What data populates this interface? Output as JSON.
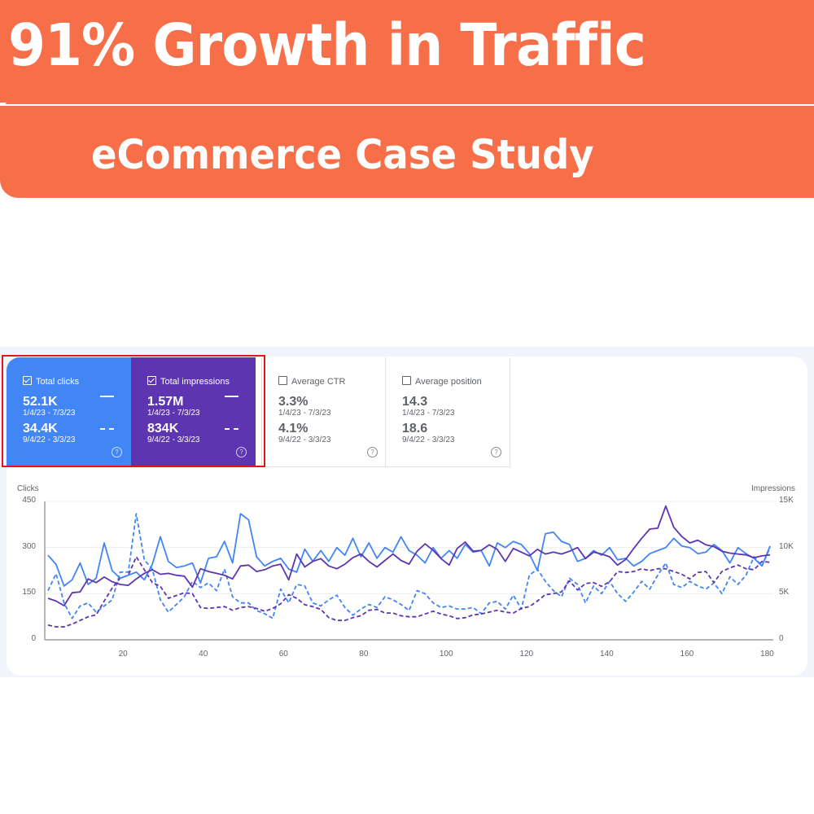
{
  "banner": {
    "headline": "91% Growth in Traffic",
    "subheadline": "eCommerce Case Study",
    "color": "#f76f48"
  },
  "metrics": [
    {
      "label": "Total clicks",
      "checked": true,
      "current_value": "52.1K",
      "current_range": "1/4/23 - 7/3/23",
      "previous_value": "34.4K",
      "previous_range": "9/4/22 - 3/3/23",
      "color": "#4285f4"
    },
    {
      "label": "Total impressions",
      "checked": true,
      "current_value": "1.57M",
      "current_range": "1/4/23 - 7/3/23",
      "previous_value": "834K",
      "previous_range": "9/4/22 - 3/3/23",
      "color": "#5e35b1"
    },
    {
      "label": "Average CTR",
      "checked": false,
      "current_value": "3.3%",
      "current_range": "1/4/23 - 7/3/23",
      "previous_value": "4.1%",
      "previous_range": "9/4/22 - 3/3/23",
      "color": "#ffffff"
    },
    {
      "label": "Average position",
      "checked": false,
      "current_value": "14.3",
      "current_range": "1/4/23 - 7/3/23",
      "previous_value": "18.6",
      "previous_range": "9/4/22 - 3/3/23",
      "color": "#ffffff"
    }
  ],
  "help_glyph": "?",
  "chart_data": {
    "type": "line",
    "title": "",
    "xlabel": "",
    "ylabel": "Clicks",
    "y2label": "Impressions",
    "x_ticks": [
      20,
      40,
      60,
      80,
      100,
      120,
      140,
      160,
      180
    ],
    "y_ticks": [
      "0",
      "150",
      "300",
      "450"
    ],
    "y2_ticks": [
      "0",
      "5K",
      "10K",
      "15K"
    ],
    "ylim": [
      0,
      450
    ],
    "y2lim": [
      0,
      15000
    ],
    "xlim": [
      1,
      181
    ],
    "grid": true,
    "legend": "metric cards (solid = 1/4/23 - 7/3/23, dashed = 9/4/22 - 3/3/23)",
    "series": [
      {
        "name": "Total clicks (1/4/23 - 7/3/23)",
        "axis": "left",
        "style": "solid",
        "color": "#4285f4",
        "x": [
          1,
          3,
          5,
          7,
          9,
          11,
          13,
          15,
          17,
          19,
          21,
          23,
          25,
          27,
          29,
          31,
          33,
          35,
          37,
          39,
          41,
          43,
          45,
          47,
          49,
          51,
          53,
          55,
          57,
          59,
          61,
          63,
          65,
          67,
          69,
          71,
          73,
          75,
          77,
          79,
          81,
          83,
          85,
          87,
          89,
          91,
          93,
          95,
          97,
          99,
          101,
          103,
          105,
          107,
          109,
          111,
          113,
          115,
          117,
          119,
          121,
          123,
          125,
          127,
          129,
          131,
          133,
          135,
          137,
          139,
          141,
          143,
          145,
          147,
          149,
          151,
          153,
          155,
          157,
          159,
          161,
          163,
          165,
          167,
          169,
          171,
          173,
          175,
          177,
          179,
          181
        ],
        "values": [
          275,
          245,
          175,
          195,
          250,
          180,
          200,
          315,
          225,
          200,
          210,
          220,
          195,
          245,
          335,
          255,
          235,
          240,
          250,
          185,
          265,
          270,
          320,
          250,
          410,
          390,
          270,
          240,
          255,
          265,
          230,
          220,
          295,
          255,
          290,
          255,
          300,
          275,
          330,
          270,
          315,
          265,
          300,
          285,
          335,
          290,
          275,
          250,
          300,
          265,
          290,
          265,
          310,
          285,
          290,
          240,
          315,
          300,
          320,
          310,
          280,
          225,
          345,
          350,
          320,
          310,
          255,
          265,
          290,
          275,
          300,
          260,
          265,
          240,
          255,
          280,
          290,
          300,
          330,
          305,
          300,
          280,
          285,
          310,
          290,
          250,
          300,
          280,
          265,
          240,
          305
        ]
      },
      {
        "name": "Total impressions (1/4/23 - 7/3/23)",
        "axis": "right",
        "style": "solid",
        "color": "#5e35b1",
        "x": [
          1,
          3,
          5,
          7,
          9,
          11,
          13,
          15,
          17,
          19,
          21,
          23,
          25,
          27,
          29,
          31,
          33,
          35,
          37,
          39,
          41,
          43,
          45,
          47,
          49,
          51,
          53,
          55,
          57,
          59,
          61,
          63,
          65,
          67,
          69,
          71,
          73,
          75,
          77,
          79,
          81,
          83,
          85,
          87,
          89,
          91,
          93,
          95,
          97,
          99,
          101,
          103,
          105,
          107,
          109,
          111,
          113,
          115,
          117,
          119,
          121,
          123,
          125,
          127,
          129,
          131,
          133,
          135,
          137,
          139,
          141,
          143,
          145,
          147,
          149,
          151,
          153,
          155,
          157,
          159,
          161,
          163,
          165,
          167,
          169,
          171,
          173,
          175,
          177,
          179,
          181
        ],
        "values": [
          4500,
          4200,
          3700,
          5100,
          5200,
          6600,
          6200,
          6800,
          6300,
          6000,
          5900,
          6600,
          7200,
          7600,
          7100,
          7200,
          7000,
          6900,
          5700,
          7700,
          7400,
          7200,
          7000,
          6600,
          8000,
          8100,
          7400,
          7600,
          8000,
          8200,
          6500,
          9300,
          7900,
          8500,
          8800,
          8000,
          7700,
          8200,
          8900,
          9300,
          8500,
          7900,
          8600,
          9300,
          8600,
          8200,
          9600,
          10400,
          9700,
          8800,
          8100,
          9900,
          10600,
          9600,
          9700,
          10300,
          9800,
          8500,
          9900,
          9500,
          9100,
          9800,
          9300,
          9500,
          9300,
          9600,
          10000,
          8800,
          9500,
          9300,
          9000,
          8100,
          8700,
          9900,
          11000,
          12000,
          12100,
          14500,
          12200,
          11200,
          10500,
          10800,
          10300,
          10100,
          9600,
          9400,
          9300,
          9200,
          8900,
          9100,
          9200
        ]
      },
      {
        "name": "Total clicks (9/4/22 - 3/3/23)",
        "axis": "left",
        "style": "dashed",
        "color": "#4285f4",
        "x": [
          1,
          3,
          5,
          7,
          9,
          11,
          13,
          15,
          17,
          19,
          21,
          23,
          25,
          27,
          29,
          31,
          33,
          35,
          37,
          39,
          41,
          43,
          45,
          47,
          49,
          51,
          53,
          55,
          57,
          59,
          61,
          63,
          65,
          67,
          69,
          71,
          73,
          75,
          77,
          79,
          81,
          83,
          85,
          87,
          89,
          91,
          93,
          95,
          97,
          99,
          101,
          103,
          105,
          107,
          109,
          111,
          113,
          115,
          117,
          119,
          121,
          123,
          125,
          127,
          129,
          131,
          133,
          135,
          137,
          139,
          141,
          143,
          145,
          147,
          149,
          151,
          153,
          155,
          157,
          159,
          161,
          163,
          165,
          167,
          169,
          171,
          173,
          175,
          177,
          179,
          181
        ],
        "values": [
          160,
          215,
          120,
          70,
          110,
          120,
          90,
          110,
          130,
          220,
          220,
          410,
          260,
          230,
          130,
          90,
          115,
          140,
          190,
          170,
          185,
          160,
          230,
          140,
          120,
          120,
          95,
          85,
          70,
          165,
          120,
          180,
          175,
          120,
          110,
          130,
          145,
          105,
          80,
          100,
          115,
          105,
          140,
          130,
          115,
          95,
          160,
          150,
          120,
          105,
          110,
          100,
          100,
          105,
          85,
          120,
          125,
          100,
          145,
          100,
          210,
          230,
          190,
          160,
          140,
          200,
          180,
          120,
          175,
          150,
          190,
          150,
          125,
          155,
          190,
          165,
          210,
          250,
          180,
          170,
          190,
          175,
          165,
          185,
          150,
          205,
          180,
          210,
          270,
          240,
          300
        ]
      },
      {
        "name": "Total impressions (9/4/22 - 3/3/23)",
        "axis": "right",
        "style": "dashed",
        "color": "#5e35b1",
        "x": [
          1,
          3,
          5,
          7,
          9,
          11,
          13,
          15,
          17,
          19,
          21,
          23,
          25,
          27,
          29,
          31,
          33,
          35,
          37,
          39,
          41,
          43,
          45,
          47,
          49,
          51,
          53,
          55,
          57,
          59,
          61,
          63,
          65,
          67,
          69,
          71,
          73,
          75,
          77,
          79,
          81,
          83,
          85,
          87,
          89,
          91,
          93,
          95,
          97,
          99,
          101,
          103,
          105,
          107,
          109,
          111,
          113,
          115,
          117,
          119,
          121,
          123,
          125,
          127,
          129,
          131,
          133,
          135,
          137,
          139,
          141,
          143,
          145,
          147,
          149,
          151,
          153,
          155,
          157,
          159,
          161,
          163,
          165,
          167,
          169,
          171,
          173,
          175,
          177,
          179,
          181
        ],
        "values": [
          1600,
          1400,
          1400,
          1700,
          2100,
          2500,
          2700,
          4200,
          5600,
          6700,
          7000,
          9000,
          7600,
          6200,
          5800,
          4500,
          4800,
          5100,
          5000,
          3500,
          3400,
          3500,
          3600,
          3200,
          3500,
          3600,
          3400,
          3100,
          3400,
          3900,
          4900,
          4500,
          3800,
          3600,
          3300,
          2400,
          2100,
          2100,
          2400,
          2600,
          3200,
          3300,
          2900,
          2900,
          2600,
          2500,
          2500,
          2800,
          3100,
          2800,
          2600,
          2300,
          2400,
          2700,
          2800,
          3000,
          3200,
          3000,
          2900,
          3400,
          3600,
          4200,
          4900,
          5000,
          5200,
          6400,
          5400,
          6100,
          6200,
          5800,
          6300,
          7400,
          7300,
          7400,
          7700,
          7500,
          7700,
          7700,
          7400,
          7100,
          6600,
          7300,
          7400,
          6200,
          7400,
          7800,
          8100,
          7700,
          7600,
          8500,
          8400
        ]
      }
    ]
  }
}
